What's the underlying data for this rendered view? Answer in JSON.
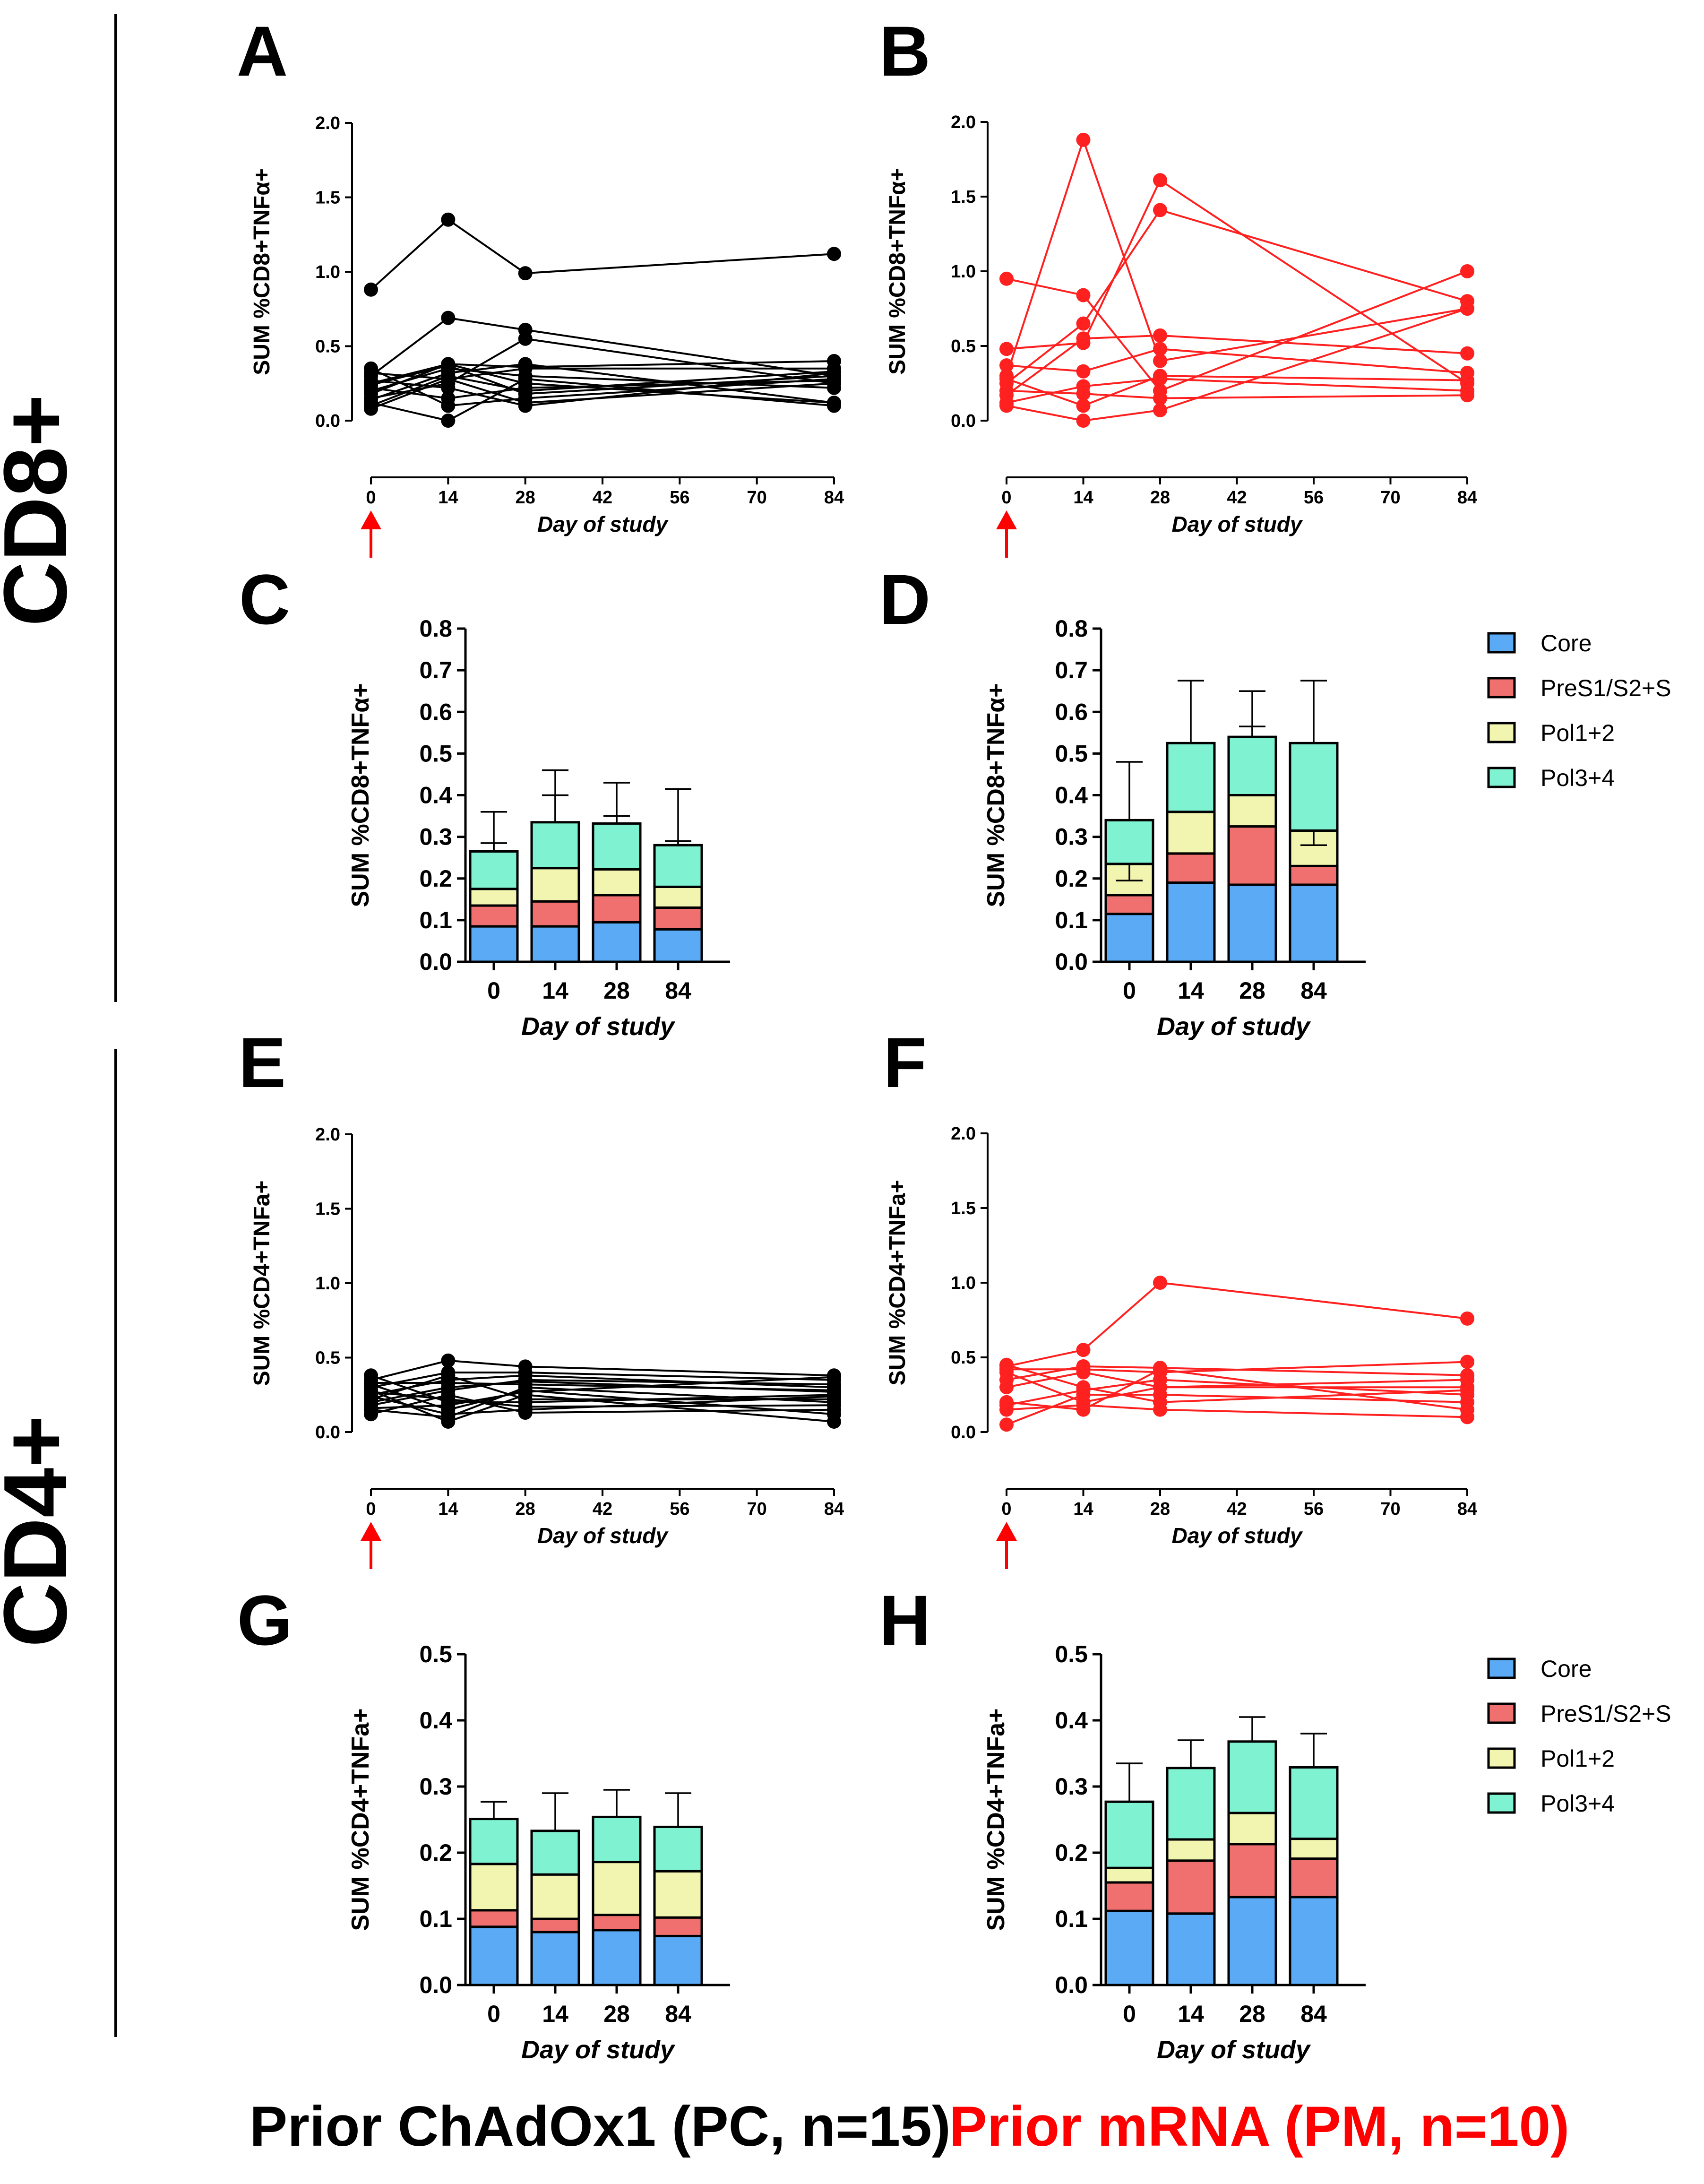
{
  "row_labels": {
    "cd8": "CD8+",
    "cd4": "CD4+"
  },
  "footer": {
    "left": "Prior ChAdOx1 (PC, n=15)",
    "right": "Prior mRNA (PM, n=10)",
    "left_color": "#000000",
    "right_color": "#ff0000"
  },
  "colors": {
    "pc": "#000000",
    "pm": "#ff2020",
    "arrow": "#ff0000",
    "core": "#5aaaf5",
    "preS": "#f07070",
    "pol12": "#f2f5b0",
    "pol34": "#7ff2d2"
  },
  "legend": {
    "core": "Core",
    "preS": "PreS1/S2+S",
    "pol12": "Pol1+2",
    "pol34": "Pol3+4"
  },
  "chart_data": [
    {
      "id": "A",
      "type": "line",
      "letter": "A",
      "color": "pc",
      "ylabel": "SUM %CD8+TNFα+",
      "xlabel": "Day of study",
      "xticks": [
        0,
        14,
        28,
        42,
        56,
        70,
        84
      ],
      "xlim": [
        0,
        84
      ],
      "yticks": [
        0.0,
        0.5,
        1.0,
        1.5,
        2.0
      ],
      "ylim": [
        0,
        2.0
      ],
      "ytick_labels": [
        "0.0",
        "0.5",
        "1.0",
        "1.5",
        "2.0"
      ],
      "x": [
        0,
        14,
        28,
        84
      ],
      "series": [
        [
          0.88,
          1.35,
          0.99,
          1.12
        ],
        [
          0.3,
          0.69,
          0.61,
          0.3
        ],
        [
          0.15,
          0.25,
          0.55,
          0.25
        ],
        [
          0.25,
          0.38,
          0.36,
          0.4
        ],
        [
          0.1,
          0.3,
          0.2,
          0.33
        ],
        [
          0.12,
          0.0,
          0.28,
          0.1
        ],
        [
          0.35,
          0.1,
          0.15,
          0.28
        ],
        [
          0.2,
          0.35,
          0.3,
          0.22
        ],
        [
          0.08,
          0.28,
          0.12,
          0.25
        ],
        [
          0.27,
          0.22,
          0.1,
          0.32
        ],
        [
          0.18,
          0.38,
          0.25,
          0.12
        ],
        [
          0.32,
          0.28,
          0.35,
          0.35
        ],
        [
          0.22,
          0.15,
          0.22,
          0.27
        ],
        [
          0.14,
          0.32,
          0.38,
          0.12
        ],
        [
          0.24,
          0.37,
          0.18,
          0.3
        ]
      ]
    },
    {
      "id": "B",
      "type": "line",
      "letter": "B",
      "color": "pm",
      "ylabel": "SUM %CD8+TNFα+",
      "xlabel": "Day of study",
      "xticks": [
        0,
        14,
        28,
        42,
        56,
        70,
        84
      ],
      "xlim": [
        0,
        84
      ],
      "yticks": [
        0.0,
        0.5,
        1.0,
        1.5,
        2.0
      ],
      "ylim": [
        0,
        2.0
      ],
      "ytick_labels": [
        "0.0",
        "0.5",
        "1.0",
        "1.5",
        "2.0"
      ],
      "x": [
        0,
        14,
        28,
        84
      ],
      "series": [
        [
          0.95,
          0.84,
          0.2,
          1.0
        ],
        [
          0.3,
          1.88,
          0.4,
          0.75
        ],
        [
          0.48,
          0.52,
          1.61,
          0.25
        ],
        [
          0.25,
          0.65,
          1.41,
          0.8
        ],
        [
          0.1,
          0.0,
          0.07,
          0.75
        ],
        [
          0.17,
          0.55,
          0.57,
          0.45
        ],
        [
          0.37,
          0.33,
          0.48,
          0.32
        ],
        [
          0.12,
          0.23,
          0.28,
          0.2
        ],
        [
          0.2,
          0.18,
          0.15,
          0.17
        ],
        [
          0.28,
          0.1,
          0.3,
          0.27
        ]
      ]
    },
    {
      "id": "C",
      "type": "bar",
      "stacked": true,
      "letter": "C",
      "ylabel": "SUM %CD8+TNFα+",
      "xlabel": "Day of study",
      "categories": [
        "0",
        "14",
        "28",
        "84"
      ],
      "yticks": [
        0.0,
        0.1,
        0.2,
        0.3,
        0.4,
        0.5,
        0.6,
        0.7,
        0.8
      ],
      "ylim": [
        0,
        0.8
      ],
      "ytick_labels": [
        "0.0",
        "0.1",
        "0.2",
        "0.3",
        "0.4",
        "0.5",
        "0.6",
        "0.7",
        "0.8"
      ],
      "series": [
        {
          "name": "Core",
          "key": "core",
          "values": [
            0.085,
            0.085,
            0.095,
            0.078
          ],
          "err": [
            0.13,
            0.13,
            0.16,
            0.12
          ]
        },
        {
          "name": "PreS1/S2+S",
          "key": "preS",
          "values": [
            0.05,
            0.06,
            0.065,
            0.052
          ],
          "err": [
            0.135,
            0.15,
            0.165,
            0.135
          ]
        },
        {
          "name": "Pol1+2",
          "key": "pol12",
          "values": [
            0.04,
            0.08,
            0.062,
            0.05
          ],
          "err": [
            0.285,
            0.4,
            0.35,
            0.29
          ]
        },
        {
          "name": "Pol3+4",
          "key": "pol34",
          "values": [
            0.09,
            0.11,
            0.11,
            0.1
          ],
          "err": [
            0.36,
            0.46,
            0.43,
            0.415
          ]
        }
      ]
    },
    {
      "id": "D",
      "type": "bar",
      "stacked": true,
      "letter": "D",
      "legend": true,
      "ylabel": "SUM %CD8+TNFα+",
      "xlabel": "Day of study",
      "categories": [
        "0",
        "14",
        "28",
        "84"
      ],
      "yticks": [
        0.0,
        0.1,
        0.2,
        0.3,
        0.4,
        0.5,
        0.6,
        0.7,
        0.8
      ],
      "ylim": [
        0,
        0.8
      ],
      "ytick_labels": [
        "0.0",
        "0.1",
        "0.2",
        "0.3",
        "0.4",
        "0.5",
        "0.6",
        "0.7",
        "0.8"
      ],
      "series": [
        {
          "name": "Core",
          "key": "core",
          "values": [
            0.115,
            0.19,
            0.185,
            0.185
          ],
          "err": [
            0.17,
            0.26,
            0.33,
            0.23
          ]
        },
        {
          "name": "PreS1/S2+S",
          "key": "preS",
          "values": [
            0.045,
            0.07,
            0.14,
            0.045
          ],
          "err": [
            0.185,
            0.43,
            0.565,
            0.255
          ]
        },
        {
          "name": "Pol1+2",
          "key": "pol12",
          "values": [
            0.075,
            0.1,
            0.075,
            0.085
          ],
          "err": [
            0.195,
            0.5,
            0.505,
            0.28
          ]
        },
        {
          "name": "Pol3+4",
          "key": "pol34",
          "values": [
            0.105,
            0.165,
            0.14,
            0.21
          ],
          "err": [
            0.48,
            0.675,
            0.65,
            0.675
          ]
        }
      ]
    },
    {
      "id": "E",
      "type": "line",
      "letter": "E",
      "color": "pc",
      "ylabel": "SUM %CD4+TNFa+",
      "xlabel": "Day of study",
      "xticks": [
        0,
        14,
        28,
        42,
        56,
        70,
        84
      ],
      "xlim": [
        0,
        84
      ],
      "yticks": [
        0.0,
        0.5,
        1.0,
        1.5,
        2.0
      ],
      "ylim": [
        0,
        2.0
      ],
      "ytick_labels": [
        "0.0",
        "0.5",
        "1.0",
        "1.5",
        "2.0"
      ],
      "x": [
        0,
        14,
        28,
        84
      ],
      "series": [
        [
          0.35,
          0.48,
          0.44,
          0.38
        ],
        [
          0.3,
          0.4,
          0.4,
          0.35
        ],
        [
          0.25,
          0.35,
          0.38,
          0.3
        ],
        [
          0.2,
          0.3,
          0.34,
          0.27
        ],
        [
          0.15,
          0.1,
          0.3,
          0.2
        ],
        [
          0.28,
          0.07,
          0.25,
          0.07
        ],
        [
          0.38,
          0.2,
          0.2,
          0.25
        ],
        [
          0.12,
          0.25,
          0.13,
          0.15
        ],
        [
          0.32,
          0.15,
          0.28,
          0.12
        ],
        [
          0.22,
          0.38,
          0.22,
          0.22
        ],
        [
          0.18,
          0.28,
          0.35,
          0.32
        ],
        [
          0.27,
          0.22,
          0.17,
          0.18
        ],
        [
          0.33,
          0.33,
          0.32,
          0.28
        ],
        [
          0.16,
          0.18,
          0.27,
          0.37
        ],
        [
          0.24,
          0.12,
          0.15,
          0.24
        ]
      ]
    },
    {
      "id": "F",
      "type": "line",
      "letter": "F",
      "color": "pm",
      "ylabel": "SUM %CD4+TNFa+",
      "xlabel": "Day of study",
      "xticks": [
        0,
        14,
        28,
        42,
        56,
        70,
        84
      ],
      "xlim": [
        0,
        84
      ],
      "yticks": [
        0.0,
        0.5,
        1.0,
        1.5,
        2.0
      ],
      "ylim": [
        0,
        2.0
      ],
      "ytick_labels": [
        "0.0",
        "0.5",
        "1.0",
        "1.5",
        "2.0"
      ],
      "x": [
        0,
        14,
        28,
        84
      ],
      "series": [
        [
          0.44,
          0.55,
          1.0,
          0.76
        ],
        [
          0.42,
          0.42,
          0.4,
          0.47
        ],
        [
          0.35,
          0.44,
          0.43,
          0.38
        ],
        [
          0.3,
          0.4,
          0.3,
          0.3
        ],
        [
          0.18,
          0.28,
          0.35,
          0.25
        ],
        [
          0.05,
          0.25,
          0.25,
          0.2
        ],
        [
          0.15,
          0.18,
          0.15,
          0.1
        ],
        [
          0.4,
          0.2,
          0.3,
          0.35
        ],
        [
          0.45,
          0.3,
          0.2,
          0.28
        ],
        [
          0.2,
          0.15,
          0.42,
          0.15
        ]
      ]
    },
    {
      "id": "G",
      "type": "bar",
      "stacked": true,
      "letter": "G",
      "ylabel": "SUM %CD4+TNFa+",
      "xlabel": "Day of study",
      "categories": [
        "0",
        "14",
        "28",
        "84"
      ],
      "yticks": [
        0.0,
        0.1,
        0.2,
        0.3,
        0.4,
        0.5
      ],
      "ylim": [
        0,
        0.5
      ],
      "ytick_labels": [
        "0.0",
        "0.1",
        "0.2",
        "0.3",
        "0.4",
        "0.5"
      ],
      "series": [
        {
          "name": "Core",
          "key": "core",
          "values": [
            0.088,
            0.08,
            0.083,
            0.074
          ],
          "err": [
            0.11,
            0.1,
            0.1,
            0.095
          ]
        },
        {
          "name": "PreS1/S2+S",
          "key": "preS",
          "values": [
            0.025,
            0.02,
            0.023,
            0.028
          ],
          "err": [
            0.14,
            0.13,
            0.13,
            0.125
          ]
        },
        {
          "name": "Pol1+2",
          "key": "pol12",
          "values": [
            0.07,
            0.067,
            0.08,
            0.07
          ],
          "err": [
            0.215,
            0.205,
            0.225,
            0.22
          ]
        },
        {
          "name": "Pol3+4",
          "key": "pol34",
          "values": [
            0.068,
            0.066,
            0.068,
            0.067
          ],
          "err": [
            0.277,
            0.29,
            0.295,
            0.29
          ]
        }
      ]
    },
    {
      "id": "H",
      "type": "bar",
      "stacked": true,
      "letter": "H",
      "legend": true,
      "ylabel": "SUM %CD4+TNFa+",
      "xlabel": "Day of study",
      "categories": [
        "0",
        "14",
        "28",
        "84"
      ],
      "yticks": [
        0.0,
        0.1,
        0.2,
        0.3,
        0.4,
        0.5
      ],
      "ylim": [
        0,
        0.5
      ],
      "ytick_labels": [
        "0.0",
        "0.1",
        "0.2",
        "0.3",
        "0.4",
        "0.5"
      ],
      "series": [
        {
          "name": "Core",
          "key": "core",
          "values": [
            0.112,
            0.108,
            0.133,
            0.133
          ],
          "err": [
            0.14,
            0.155,
            0.165,
            0.165
          ]
        },
        {
          "name": "PreS1/S2+S",
          "key": "preS",
          "values": [
            0.043,
            0.08,
            0.08,
            0.058
          ],
          "err": [
            0.185,
            0.23,
            0.28,
            0.215
          ]
        },
        {
          "name": "Pol1+2",
          "key": "pol12",
          "values": [
            0.022,
            0.032,
            0.047,
            0.03
          ],
          "err": [
            0.205,
            0.26,
            0.325,
            0.262
          ]
        },
        {
          "name": "Pol3+4",
          "key": "pol34",
          "values": [
            0.1,
            0.108,
            0.108,
            0.108
          ],
          "err": [
            0.335,
            0.37,
            0.405,
            0.38
          ]
        }
      ]
    }
  ]
}
